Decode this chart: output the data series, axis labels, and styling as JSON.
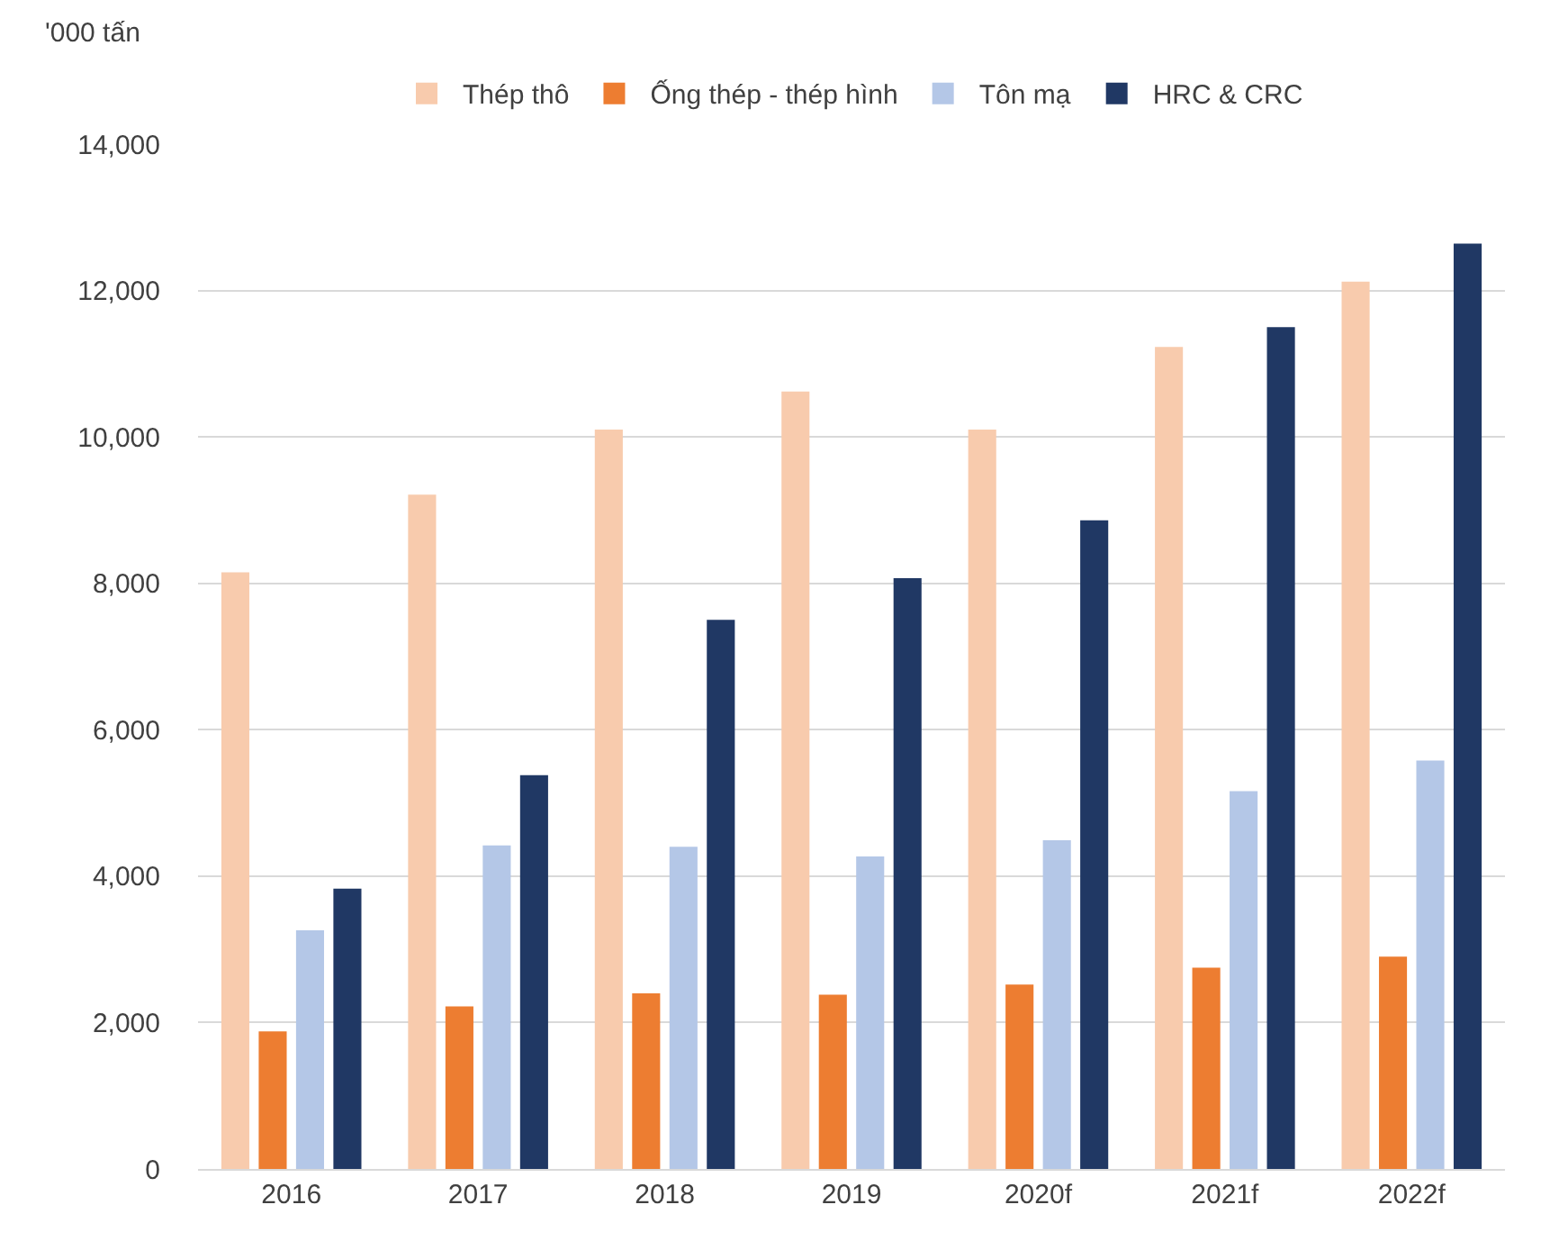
{
  "chart_data": {
    "type": "bar",
    "ylabel": "'000 tấn",
    "categories": [
      "2016",
      "2017",
      "2018",
      "2019",
      "2020f",
      "2021f",
      "2022f"
    ],
    "series": [
      {
        "name": "Thép thô",
        "color": "#f8cbad",
        "values": [
          8150,
          9210,
          10100,
          10620,
          10100,
          11230,
          12120
        ]
      },
      {
        "name": "Ống thép - thép hình",
        "color": "#ed7d31",
        "values": [
          1880,
          2220,
          2400,
          2380,
          2520,
          2750,
          2900
        ]
      },
      {
        "name": "Tôn mạ",
        "color": "#b4c7e7",
        "values": [
          3260,
          4420,
          4400,
          4270,
          4490,
          5160,
          5580
        ]
      },
      {
        "name": "HRC & CRC",
        "color": "#203864",
        "values": [
          3830,
          5380,
          7500,
          8070,
          8860,
          11500,
          12640
        ]
      }
    ],
    "ylim": [
      0,
      14000
    ],
    "yticks": [
      {
        "value": 0,
        "label": "0"
      },
      {
        "value": 2000,
        "label": "2,000"
      },
      {
        "value": 4000,
        "label": "4,000"
      },
      {
        "value": 6000,
        "label": "6,000"
      },
      {
        "value": 8000,
        "label": "8,000"
      },
      {
        "value": 10000,
        "label": "10,000"
      },
      {
        "value": 12000,
        "label": "12,000"
      },
      {
        "value": 14000,
        "label": "14,000"
      }
    ],
    "grid": "y",
    "legend": "top"
  }
}
